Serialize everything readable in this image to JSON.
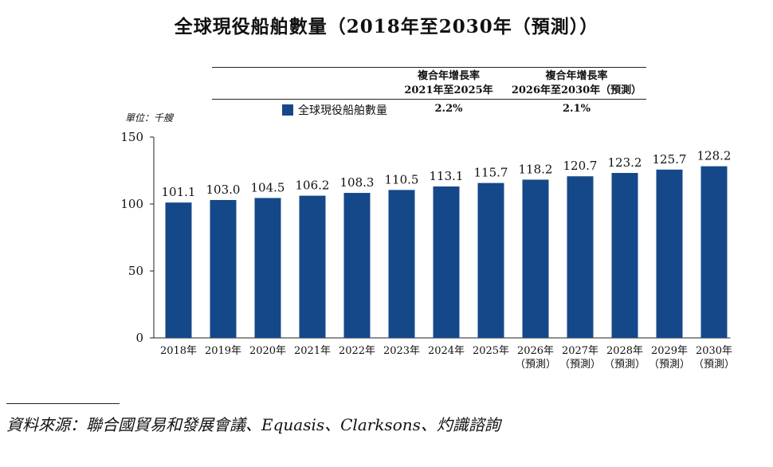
{
  "title": "全球現役船舶數量（2018年至2030年（預測））",
  "cagr_table": {
    "col1_header": [
      "複合年增長率",
      "2021年至2025年"
    ],
    "col2_header": [
      "複合年增長率",
      "2026年至2030年（預測）"
    ],
    "legend_label": "全球現役船舶數量",
    "col1_value": "2.2%",
    "col2_value": "2.1%"
  },
  "unit_label": "單位：千艘",
  "source": "資料來源：聯合國貿易和發展會議、Equasis、Clarksons、灼識諮詢",
  "colors": {
    "bar": "#154889",
    "text": "#111111"
  },
  "chart_data": {
    "type": "bar",
    "categories": [
      "2018年",
      "2019年",
      "2020年",
      "2021年",
      "2022年",
      "2023年",
      "2024年",
      "2025年",
      "2026年\n（預測）",
      "2027年\n（預測）",
      "2028年\n（預測）",
      "2029年\n（預測）",
      "2030年\n（預測）"
    ],
    "series": [
      {
        "name": "全球現役船舶數量",
        "values": [
          101.1,
          103.0,
          104.5,
          106.2,
          108.3,
          110.5,
          113.1,
          115.7,
          118.2,
          120.7,
          123.2,
          125.7,
          128.2
        ]
      }
    ],
    "data_labels": [
      "101.1",
      "103.0",
      "104.5",
      "106.2",
      "108.3",
      "110.5",
      "113.1",
      "115.7",
      "118.2",
      "120.7",
      "123.2",
      "125.7",
      "128.2"
    ],
    "y_ticks": [
      0,
      50,
      100,
      150
    ],
    "ylim": [
      0,
      150
    ],
    "grid": false,
    "legend": "top"
  }
}
